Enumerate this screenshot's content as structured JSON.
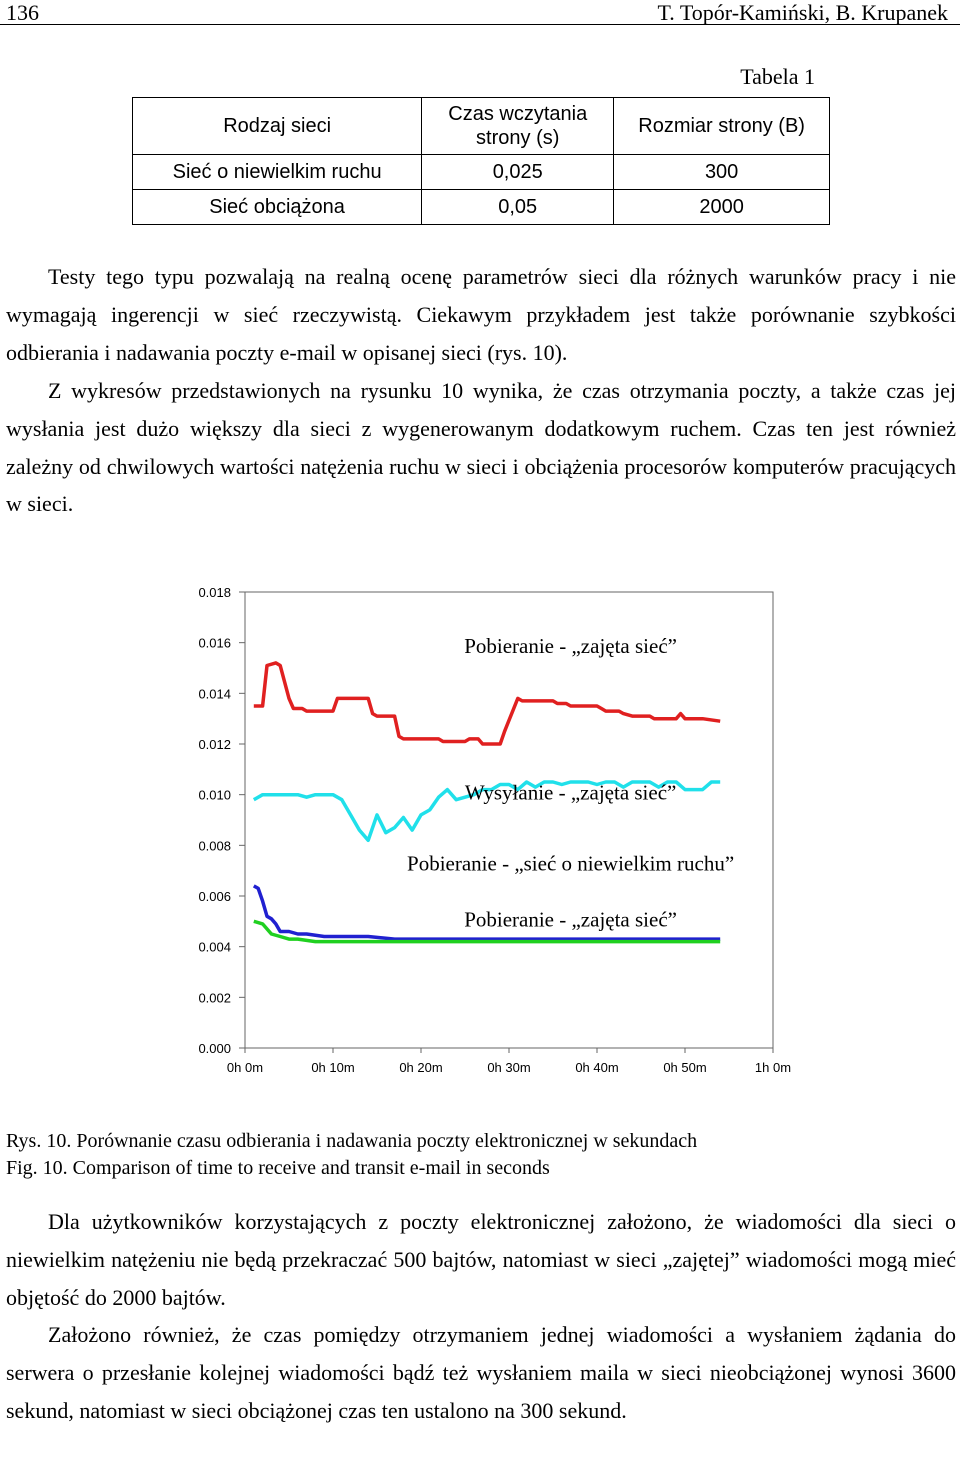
{
  "header": {
    "page_number": "136",
    "authors": "T. Topór-Kamiński, B. Krupanek"
  },
  "table": {
    "caption": "Tabela 1",
    "headers": [
      "Rodzaj sieci",
      "Czas wczytania strony (s)",
      "Rozmiar strony (B)"
    ],
    "rows": [
      [
        "Sieć o niewielkim ruchu",
        "0,025",
        "300"
      ],
      [
        "Sieć obciążona",
        "0,05",
        "2000"
      ]
    ]
  },
  "paragraphs": {
    "p1": "Testy tego typu pozwalają na realną ocenę parametrów sieci dla różnych warunków pracy i nie wymagają ingerencji w sieć rzeczywistą. Ciekawym przykładem jest także porównanie szybkości odbierania i nadawania poczty e-mail w opisanej sieci (rys. 10).",
    "p2": "Z wykresów przedstawionych na rysunku 10 wynika, że czas otrzymania poczty, a także czas jej wysłania jest dużo większy dla sieci z wygenerowanym dodatkowym ruchem. Czas ten jest również zależny od chwilowych wartości natężenia ruchu w sieci i obciążenia procesorów komputerów pracujących w sieci.",
    "p3": "Dla użytkowników korzystających z poczty elektronicznej założono, że wiadomości dla sieci o niewielkim natężeniu nie będą przekraczać 500 bajtów, natomiast w sieci „zajętej” wiadomości mogą mieć objętość do 2000 bajtów.",
    "p4": "Założono również, że czas pomiędzy otrzymaniem jednej wiadomości a wysłaniem żądania do serwera o przesłanie kolejnej wiadomości bądź też wysłaniem maila w sieci nieobciążonej wynosi 3600 sekund, natomiast w sieci obciążonej czas ten ustalono na 300 sekund."
  },
  "figure": {
    "caption_pl": "Rys. 10. Porównanie czasu odbierania i nadawania poczty elektronicznej w sekundach",
    "caption_en": "Fig. 10. Comparison of time to receive and transit e-mail in seconds"
  },
  "chart_data": {
    "type": "line",
    "xlabel": "",
    "ylabel": "",
    "ylim": [
      0,
      0.018
    ],
    "xlim": [
      0,
      60
    ],
    "x_ticks": [
      "0h 0m",
      "0h 10m",
      "0h 20m",
      "0h 30m",
      "0h 40m",
      "0h 50m",
      "1h 0m"
    ],
    "x_tick_values": [
      0,
      10,
      20,
      30,
      40,
      50,
      60
    ],
    "y_ticks": [
      "0.018",
      "0.016",
      "0.014",
      "0.012",
      "0.010",
      "0.008",
      "0.006",
      "0.004",
      "0.002",
      "0.000"
    ],
    "y_tick_values": [
      0.018,
      0.016,
      0.014,
      0.012,
      0.01,
      0.008,
      0.006,
      0.004,
      0.002,
      0.0
    ],
    "grid": false,
    "series": [
      {
        "name": "Pobieranie - „zajęta sieć”",
        "color": "#e02020",
        "x": [
          1,
          2,
          2.5,
          3.5,
          4,
          5,
          5.5,
          6.5,
          7,
          9,
          10,
          10.5,
          14,
          14.5,
          15,
          17,
          17.5,
          18,
          19,
          20,
          22,
          22.5,
          25,
          25.5,
          26.5,
          27,
          29,
          29.5,
          31,
          31.5,
          35,
          35.5,
          36.5,
          37,
          38,
          40,
          40.5,
          41,
          42.5,
          43,
          44,
          46,
          46.5,
          49,
          49.5,
          50,
          52,
          54
        ],
        "y": [
          0.0135,
          0.0135,
          0.0151,
          0.0152,
          0.0151,
          0.0138,
          0.0134,
          0.0134,
          0.0133,
          0.0133,
          0.0133,
          0.0138,
          0.0138,
          0.0132,
          0.0131,
          0.0131,
          0.0123,
          0.0122,
          0.0122,
          0.0122,
          0.0122,
          0.0121,
          0.0121,
          0.0122,
          0.0122,
          0.012,
          0.012,
          0.0125,
          0.0138,
          0.0137,
          0.0137,
          0.0136,
          0.0136,
          0.0135,
          0.0135,
          0.0135,
          0.0134,
          0.0133,
          0.0133,
          0.0132,
          0.0131,
          0.0131,
          0.013,
          0.013,
          0.0132,
          0.013,
          0.013,
          0.0129
        ]
      },
      {
        "name": "Wysyłanie - „zajęta sieć”",
        "color": "#20e0ea",
        "x": [
          1,
          2,
          3,
          4,
          5,
          6,
          7,
          8,
          9,
          10,
          11,
          12,
          13,
          14,
          15,
          16,
          17,
          18,
          19,
          20,
          21,
          22,
          23,
          24,
          25,
          26,
          27,
          28,
          29,
          30,
          31,
          32,
          33,
          34,
          35,
          36,
          37,
          38,
          39,
          40,
          41,
          42,
          43,
          44,
          45,
          46,
          47,
          48,
          49,
          50,
          51,
          52,
          53,
          54
        ],
        "y": [
          0.0098,
          0.01,
          0.01,
          0.01,
          0.01,
          0.01,
          0.0099,
          0.01,
          0.01,
          0.01,
          0.0098,
          0.0092,
          0.0086,
          0.0082,
          0.0092,
          0.0085,
          0.0087,
          0.0091,
          0.0086,
          0.0092,
          0.0094,
          0.0099,
          0.0102,
          0.0098,
          0.0099,
          0.01,
          0.0102,
          0.0102,
          0.0104,
          0.0104,
          0.0102,
          0.0105,
          0.0103,
          0.0105,
          0.0105,
          0.0104,
          0.0105,
          0.0105,
          0.0105,
          0.0104,
          0.0105,
          0.0105,
          0.0103,
          0.0105,
          0.0105,
          0.0105,
          0.0103,
          0.0105,
          0.0105,
          0.0102,
          0.0102,
          0.0102,
          0.0105,
          0.0105
        ]
      },
      {
        "name": "Pobieranie - „sieć o niewielkim ruchu”",
        "color": "#2020d0",
        "x": [
          1,
          1.5,
          2,
          2.5,
          3,
          3.5,
          4,
          5,
          6,
          7,
          9,
          11,
          14,
          17,
          20,
          25,
          30,
          35,
          40,
          45,
          50,
          54
        ],
        "y": [
          0.0064,
          0.0063,
          0.0058,
          0.0052,
          0.0051,
          0.0049,
          0.0046,
          0.0046,
          0.0045,
          0.0045,
          0.0044,
          0.0044,
          0.0044,
          0.0043,
          0.0043,
          0.0043,
          0.0043,
          0.0043,
          0.0043,
          0.0043,
          0.0043,
          0.0043
        ]
      },
      {
        "name": "Pobieranie - „zajęta sieć”",
        "color": "#20d020",
        "x": [
          1,
          2,
          3,
          4,
          5,
          6,
          8,
          10,
          12,
          14,
          17,
          20,
          25,
          30,
          35,
          40,
          45,
          50,
          54
        ],
        "y": [
          0.005,
          0.0049,
          0.0045,
          0.0044,
          0.0043,
          0.0043,
          0.0042,
          0.0042,
          0.0042,
          0.0042,
          0.0042,
          0.0042,
          0.0042,
          0.0042,
          0.0042,
          0.0042,
          0.0042,
          0.0042,
          0.0042
        ]
      }
    ],
    "annotations": [
      {
        "text": "Pobieranie - „zajęta sieć”",
        "x": 37,
        "y": 0.0156
      },
      {
        "text": "Wysyłanie - „zajęta sieć”",
        "x": 37,
        "y": 0.0098
      },
      {
        "text": "Pobieranie - „sieć o niewielkim ruchu”",
        "x": 37,
        "y": 0.007
      },
      {
        "text": "Pobieranie - „zajęta sieć”",
        "x": 37,
        "y": 0.0048
      }
    ]
  }
}
